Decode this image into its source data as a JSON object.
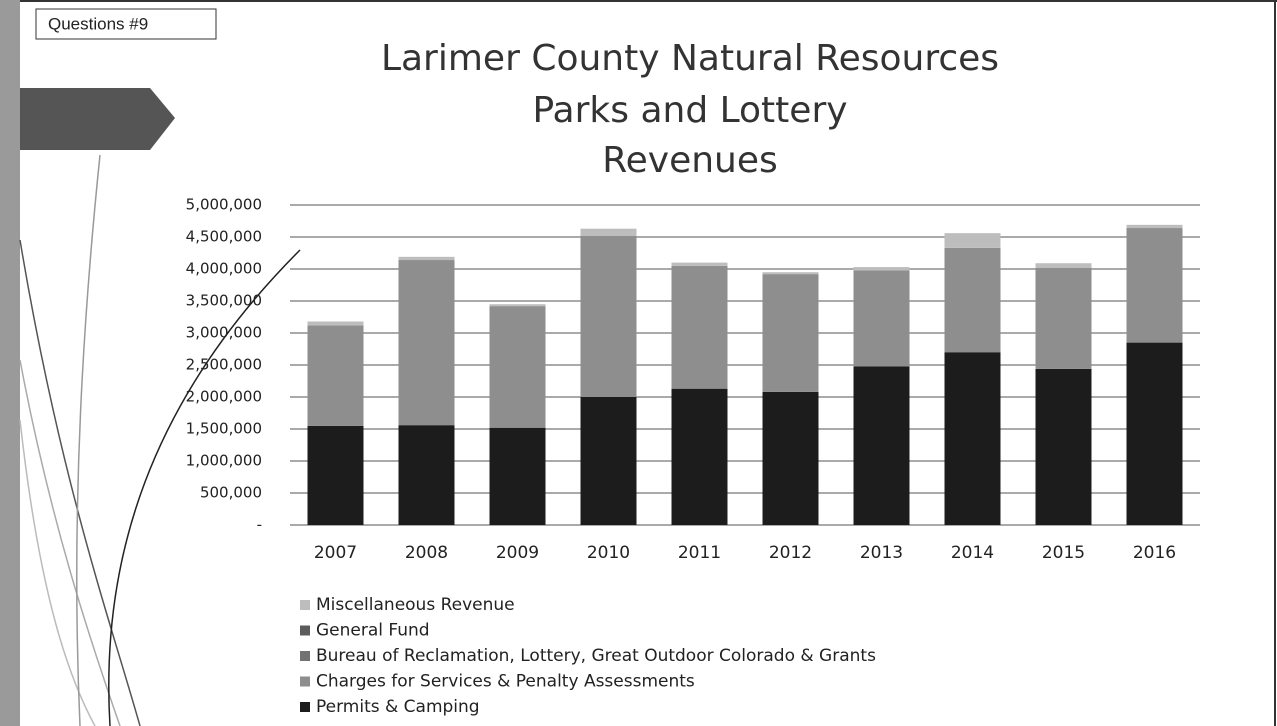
{
  "slide_label": "Questions #9",
  "chart_data": {
    "type": "stacked_bar",
    "title": [
      "Larimer County Natural Resources",
      "Parks and Lottery",
      "Revenues"
    ],
    "categories": [
      "2007",
      "2008",
      "2009",
      "2010",
      "2011",
      "2012",
      "2013",
      "2014",
      "2015",
      "2016"
    ],
    "series": [
      {
        "name": "Permits & Camping",
        "color": "#1c1c1c",
        "values": [
          1550000,
          1560000,
          1520000,
          2000000,
          2130000,
          2080000,
          2480000,
          2700000,
          2440000,
          2850000
        ]
      },
      {
        "name": "Charges for Services & Penalty Assessments",
        "color": "#8e8e8e",
        "values": [
          1570000,
          2580000,
          1900000,
          2520000,
          1920000,
          1840000,
          1500000,
          1630000,
          1580000,
          1790000
        ]
      },
      {
        "name": "Bureau of Reclamation, Lottery, Great Outdoor Colorado & Grants",
        "color": "#727272",
        "values": [
          0,
          0,
          0,
          0,
          0,
          0,
          0,
          0,
          0,
          0
        ]
      },
      {
        "name": "General Fund",
        "color": "#5c5c5c",
        "values": [
          0,
          0,
          0,
          0,
          0,
          0,
          0,
          0,
          0,
          0
        ]
      },
      {
        "name": "Miscellaneous Revenue",
        "color": "#bdbdbd",
        "values": [
          60000,
          50000,
          30000,
          110000,
          50000,
          30000,
          50000,
          230000,
          70000,
          50000
        ]
      }
    ],
    "ylim": [
      0,
      5000000
    ],
    "yticks": [
      {
        "value": 0,
        "label": "-"
      },
      {
        "value": 500000,
        "label": "500,000"
      },
      {
        "value": 1000000,
        "label": "1,000,000"
      },
      {
        "value": 1500000,
        "label": "1,500,000"
      },
      {
        "value": 2000000,
        "label": "2,000,000"
      },
      {
        "value": 2500000,
        "label": "2,500,000"
      },
      {
        "value": 3000000,
        "label": "3,000,000"
      },
      {
        "value": 3500000,
        "label": "3,500,000"
      },
      {
        "value": 4000000,
        "label": "4,000,000"
      },
      {
        "value": 4500000,
        "label": "4,500,000"
      },
      {
        "value": 5000000,
        "label": "5,000,000"
      }
    ],
    "grid": true
  }
}
